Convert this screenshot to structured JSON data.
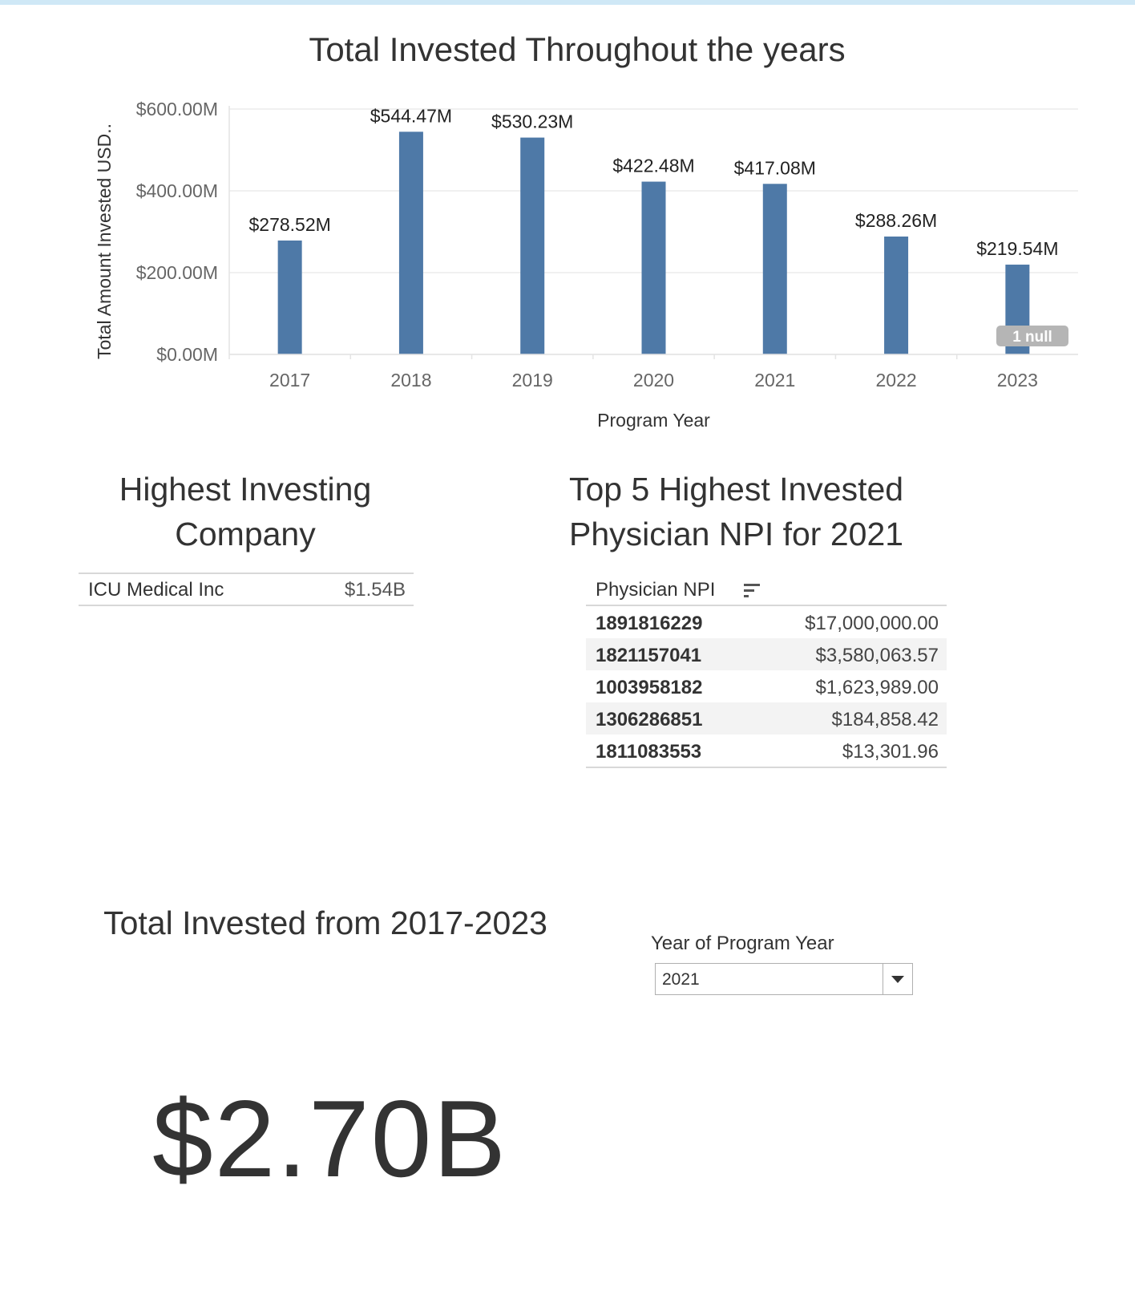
{
  "chart_data": {
    "type": "bar",
    "title": "Total Invested Throughout the years",
    "xlabel": "Program Year",
    "ylabel": "Total Amount Invested USD..",
    "categories": [
      "2017",
      "2018",
      "2019",
      "2020",
      "2021",
      "2022",
      "2023"
    ],
    "values": [
      278.52,
      544.47,
      530.23,
      422.48,
      417.08,
      288.26,
      219.54
    ],
    "value_labels": [
      "$278.52M",
      "$544.47M",
      "$530.23M",
      "$422.48M",
      "$417.08M",
      "$288.26M",
      "$219.54M"
    ],
    "y_ticks": [
      {
        "value": 0,
        "label": "$0.00M"
      },
      {
        "value": 200,
        "label": "$200.00M"
      },
      {
        "value": 400,
        "label": "$400.00M"
      },
      {
        "value": 600,
        "label": "$600.00M"
      }
    ],
    "ylim": [
      0,
      600
    ],
    "units": "USD millions",
    "grid": true,
    "bar_color": "#4e79a7",
    "null_indicator": "1 null"
  },
  "company": {
    "title_line1": "Highest Investing",
    "title_line2": "Company",
    "name": "ICU Medical Inc",
    "value": "$1.54B"
  },
  "npi": {
    "title_line1": "Top 5 Highest Invested",
    "title_line2": "Physician NPI for 2021",
    "header": "Physician NPI",
    "rows": [
      {
        "id": "1891816229",
        "amount": "$17,000,000.00"
      },
      {
        "id": "1821157041",
        "amount": "$3,580,063.57"
      },
      {
        "id": "1003958182",
        "amount": "$1,623,989.00"
      },
      {
        "id": "1306286851",
        "amount": "$184,858.42"
      },
      {
        "id": "1811083553",
        "amount": "$13,301.96"
      }
    ]
  },
  "total": {
    "title": "Total Invested from 2017-2023",
    "value": "$2.70B"
  },
  "filter": {
    "label": "Year of Program Year",
    "value": "2021"
  }
}
